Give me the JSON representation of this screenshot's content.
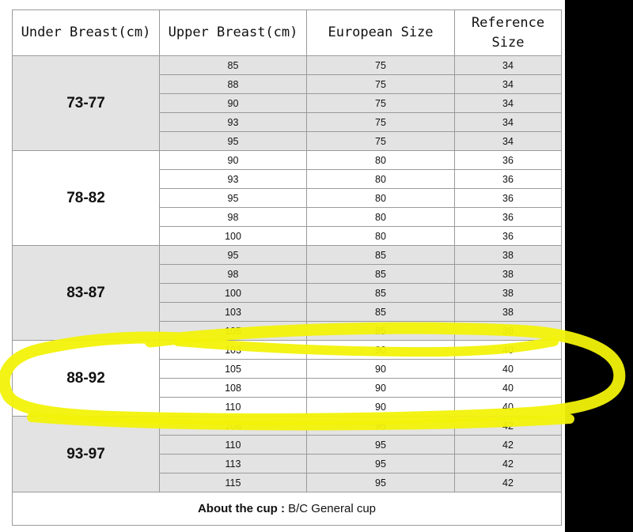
{
  "headers": [
    "Under Breast(cm)",
    "Upper Breast(cm)",
    "European Size",
    "Reference\nSize"
  ],
  "groups": [
    {
      "under": "73-77",
      "european": "75",
      "reference": "34",
      "upper": [
        "85",
        "88",
        "90",
        "93",
        "95"
      ]
    },
    {
      "under": "78-82",
      "european": "80",
      "reference": "36",
      "upper": [
        "90",
        "93",
        "95",
        "98",
        "100"
      ]
    },
    {
      "under": "83-87",
      "european": "85",
      "reference": "38",
      "upper": [
        "95",
        "98",
        "100",
        "103",
        "105"
      ]
    },
    {
      "under": "88-92",
      "european": "90",
      "reference": "40",
      "upper": [
        "103",
        "105",
        "108",
        "110"
      ]
    },
    {
      "under": "93-97",
      "european": "95",
      "reference": "42",
      "upper": [
        "108",
        "110",
        "113",
        "115"
      ]
    }
  ],
  "footer": {
    "label": "About the cup : ",
    "value": "B/C General cup"
  },
  "colors": {
    "shade": "#e3e3e3",
    "highlight": "#f2f20a"
  }
}
